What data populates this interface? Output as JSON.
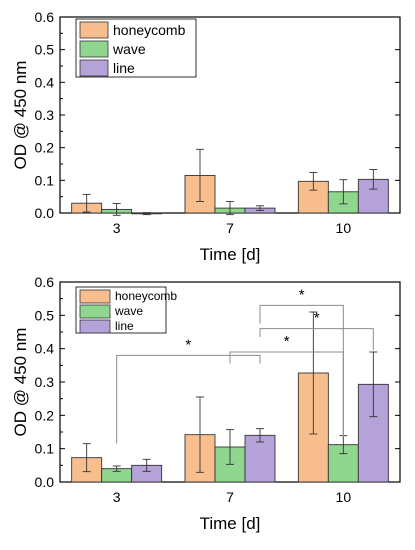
{
  "colors": {
    "honeycomb": "#f9be8e",
    "wave": "#8fd68f",
    "line": "#b4a2d8",
    "stroke": "#333333",
    "bracket": "#8c8c8c"
  },
  "chart_data": [
    {
      "type": "bar",
      "categories": [
        "3",
        "7",
        "10"
      ],
      "series": [
        {
          "name": "honeycomb",
          "values": [
            0.03,
            0.115,
            0.097
          ],
          "errors": [
            0.027,
            0.08,
            0.027
          ]
        },
        {
          "name": "wave",
          "values": [
            0.011,
            0.015,
            0.065
          ],
          "errors": [
            0.018,
            0.02,
            0.037
          ]
        },
        {
          "name": "line",
          "values": [
            -0.002,
            0.015,
            0.103
          ],
          "errors": [
            0.003,
            0.007,
            0.03
          ]
        }
      ],
      "xlabel": "Time [d]",
      "ylabel": "OD @ 450 nm",
      "ylim": [
        0,
        0.6
      ],
      "yticks": [
        "0.0",
        "0.1",
        "0.2",
        "0.3",
        "0.4",
        "0.5",
        "0.6"
      ],
      "legend_position": "top-left",
      "significance": []
    },
    {
      "type": "bar",
      "categories": [
        "3",
        "7",
        "10"
      ],
      "series": [
        {
          "name": "honeycomb",
          "values": [
            0.073,
            0.142,
            0.327
          ],
          "errors": [
            0.042,
            0.113,
            0.183
          ]
        },
        {
          "name": "wave",
          "values": [
            0.04,
            0.105,
            0.112
          ],
          "errors": [
            0.008,
            0.052,
            0.027
          ]
        },
        {
          "name": "line",
          "values": [
            0.05,
            0.14,
            0.293
          ],
          "errors": [
            0.018,
            0.02,
            0.097
          ]
        }
      ],
      "xlabel": "Time [d]",
      "ylabel": "OD @ 450 nm",
      "ylim": [
        0,
        0.6
      ],
      "yticks": [
        "0.0",
        "0.1",
        "0.2",
        "0.3",
        "0.4",
        "0.5",
        "0.6"
      ],
      "legend_position": "top-left",
      "significance": [
        {
          "from": [
            0,
            1
          ],
          "to": [
            1,
            2
          ],
          "label": "*"
        },
        {
          "from": [
            1,
            1
          ],
          "to": [
            2,
            1
          ],
          "label": "*"
        },
        {
          "from": [
            1,
            2
          ],
          "to": [
            2,
            1
          ],
          "label": "*"
        },
        {
          "from": [
            1,
            2
          ],
          "to": [
            2,
            2
          ],
          "label": "*"
        }
      ]
    }
  ]
}
